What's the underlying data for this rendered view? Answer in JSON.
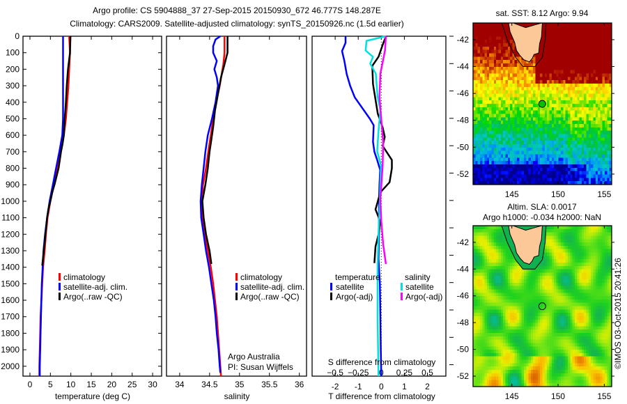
{
  "header": {
    "title_line1": "Argo profile: CS 5904888_37 27-Sep-2015 20150930_672 46.777S 148.287E",
    "title_line2": "Climatology: CARS2009. Satellite-adjusted climatology: synTS_20150926.nc (1.5d earlier)"
  },
  "credit": {
    "line1": "Argo Australia",
    "line2": "PI: Susan Wijffels",
    "stamp": "©IMOS 03-Oct-2015 20:41:26"
  },
  "chart_data": [
    {
      "type": "line",
      "id": "temperature",
      "xlabel": "temperature (deg C)",
      "ylabel": "",
      "xlim": [
        -1.7,
        32.2
      ],
      "ylim": [
        2060,
        0
      ],
      "xticks": [
        0,
        5,
        10,
        15,
        20,
        25,
        30
      ],
      "yticks": [
        0,
        100,
        200,
        300,
        400,
        500,
        600,
        700,
        800,
        900,
        1000,
        1100,
        1200,
        1300,
        1400,
        1500,
        1600,
        1700,
        1800,
        1900,
        2000
      ],
      "legend": [
        "climatology",
        "satellite-adj. clim.",
        "Argo(..raw -QC)"
      ],
      "legend_placement": "center-right",
      "series": [
        {
          "name": "climatology",
          "color": "#ff0000",
          "points": [
            [
              0,
              9.6
            ],
            [
              100,
              9.8
            ],
            [
              200,
              9.6
            ],
            [
              300,
              9.4
            ],
            [
              400,
              9.1
            ],
            [
              500,
              8.8
            ],
            [
              600,
              8.3
            ],
            [
              700,
              7.4
            ],
            [
              800,
              6.8
            ],
            [
              900,
              5.9
            ],
            [
              1000,
              5.0
            ],
            [
              1100,
              4.3
            ],
            [
              1200,
              3.9
            ],
            [
              1300,
              3.6
            ],
            [
              1400,
              3.2
            ],
            [
              1500,
              3.0
            ],
            [
              1600,
              2.8
            ],
            [
              1700,
              2.6
            ],
            [
              1800,
              2.5
            ],
            [
              1900,
              2.4
            ],
            [
              2000,
              2.3
            ],
            [
              2060,
              2.3
            ]
          ]
        },
        {
          "name": "satellite-adj. clim.",
          "color": "#0000ff",
          "points": [
            [
              0,
              8.1
            ],
            [
              500,
              8.1
            ],
            [
              600,
              7.9
            ],
            [
              700,
              7.2
            ],
            [
              800,
              6.4
            ],
            [
              900,
              5.6
            ],
            [
              1000,
              4.8
            ],
            [
              1100,
              4.2
            ],
            [
              1200,
              3.7
            ],
            [
              1300,
              3.3
            ],
            [
              1400,
              3.1
            ],
            [
              1500,
              2.9
            ],
            [
              1600,
              2.8
            ],
            [
              1700,
              2.7
            ],
            [
              1800,
              2.6
            ],
            [
              1900,
              2.5
            ],
            [
              2000,
              2.4
            ],
            [
              2060,
              2.4
            ]
          ]
        },
        {
          "name": "Argo(..raw -QC)",
          "color": "#000000",
          "points": [
            [
              0,
              9.9
            ],
            [
              100,
              9.8
            ],
            [
              200,
              9.3
            ],
            [
              300,
              9.0
            ],
            [
              400,
              8.8
            ],
            [
              500,
              8.5
            ],
            [
              600,
              8.3
            ],
            [
              650,
              8.0
            ],
            [
              700,
              7.6
            ],
            [
              800,
              7.0
            ],
            [
              900,
              6.0
            ],
            [
              950,
              5.4
            ],
            [
              1000,
              5.0
            ],
            [
              1050,
              4.5
            ],
            [
              1100,
              4.2
            ],
            [
              1200,
              3.8
            ],
            [
              1300,
              3.4
            ],
            [
              1390,
              3.0
            ]
          ]
        }
      ]
    },
    {
      "type": "line",
      "id": "salinity",
      "xlabel": "salinity",
      "xlim": [
        33.78,
        36.12
      ],
      "ylim": [
        2060,
        0
      ],
      "xticks": [
        34,
        34.5,
        35,
        35.5,
        36
      ],
      "legend": [
        "climatology",
        "satellite-adj. clim.",
        "Argo(..raw -QC)"
      ],
      "legend_placement": "center-right",
      "series": [
        {
          "name": "climatology",
          "color": "#ff0000",
          "points": [
            [
              0,
              34.75
            ],
            [
              100,
              34.75
            ],
            [
              170,
              34.73
            ],
            [
              300,
              34.67
            ],
            [
              380,
              34.62
            ],
            [
              500,
              34.56
            ],
            [
              600,
              34.52
            ],
            [
              670,
              34.49
            ],
            [
              800,
              34.44
            ],
            [
              900,
              34.39
            ],
            [
              1000,
              34.37
            ],
            [
              1100,
              34.38
            ],
            [
              1200,
              34.42
            ],
            [
              1300,
              34.47
            ],
            [
              1400,
              34.52
            ],
            [
              1500,
              34.56
            ],
            [
              1600,
              34.59
            ],
            [
              1700,
              34.62
            ],
            [
              1800,
              34.64
            ],
            [
              1900,
              34.66
            ],
            [
              2000,
              34.68
            ],
            [
              2060,
              34.69
            ]
          ]
        },
        {
          "name": "satellite-adj. clim.",
          "color": "#0000ff",
          "points": [
            [
              0,
              34.68
            ],
            [
              20,
              34.6
            ],
            [
              60,
              34.56
            ],
            [
              100,
              34.56
            ],
            [
              150,
              34.62
            ],
            [
              200,
              34.58
            ],
            [
              250,
              34.62
            ],
            [
              300,
              34.64
            ],
            [
              400,
              34.6
            ],
            [
              500,
              34.54
            ],
            [
              600,
              34.47
            ],
            [
              700,
              34.43
            ],
            [
              800,
              34.4
            ],
            [
              900,
              34.37
            ],
            [
              1000,
              34.35
            ],
            [
              1100,
              34.36
            ],
            [
              1200,
              34.4
            ],
            [
              1300,
              34.44
            ],
            [
              1400,
              34.49
            ],
            [
              1500,
              34.53
            ],
            [
              1600,
              34.57
            ],
            [
              1700,
              34.6
            ],
            [
              1800,
              34.62
            ],
            [
              1900,
              34.65
            ],
            [
              2000,
              34.67
            ],
            [
              2040,
              34.68
            ]
          ]
        },
        {
          "name": "Argo(..raw -QC)",
          "color": "#000000",
          "points": [
            [
              0,
              34.8
            ],
            [
              100,
              34.8
            ],
            [
              170,
              34.75
            ],
            [
              250,
              34.69
            ],
            [
              350,
              34.64
            ],
            [
              450,
              34.59
            ],
            [
              550,
              34.56
            ],
            [
              650,
              34.52
            ],
            [
              700,
              34.5
            ],
            [
              800,
              34.47
            ],
            [
              900,
              34.43
            ],
            [
              1000,
              34.38
            ],
            [
              1100,
              34.4
            ],
            [
              1200,
              34.44
            ],
            [
              1300,
              34.5
            ],
            [
              1380,
              34.53
            ]
          ]
        }
      ]
    },
    {
      "type": "line",
      "id": "difference",
      "xlabel": "T difference from climatology",
      "x2label": "S difference from climatology",
      "xlim": [
        -3,
        2.8
      ],
      "ylim": [
        2060,
        0
      ],
      "xticks": [
        -2,
        -1,
        0,
        1,
        2
      ],
      "x2ticks": [
        -0.5,
        -0.25,
        0,
        0.25,
        0.5
      ],
      "x2_scale": 0.25,
      "legend_headers": [
        "temperature",
        "salinity"
      ],
      "legend": [
        "satellite",
        "Argo(-adj)",
        "satellite",
        "Argo(-adj)"
      ],
      "legend_placement": "center",
      "series": [
        {
          "name": "temperature satellite",
          "axis": "T",
          "color": "#0000ff",
          "points": [
            [
              0,
              -1.55
            ],
            [
              40,
              -1.55
            ],
            [
              90,
              -1.7
            ],
            [
              150,
              -1.6
            ],
            [
              230,
              -1.5
            ],
            [
              300,
              -1.35
            ],
            [
              370,
              -1.15
            ],
            [
              440,
              -0.8
            ],
            [
              500,
              -0.5
            ],
            [
              540,
              -0.33
            ],
            [
              640,
              -0.36
            ],
            [
              700,
              -0.3
            ],
            [
              750,
              -0.18
            ],
            [
              810,
              -0.05
            ],
            [
              900,
              -0.08
            ],
            [
              1000,
              -0.1
            ],
            [
              1100,
              -0.1
            ],
            [
              1200,
              -0.1
            ],
            [
              1350,
              -0.12
            ],
            [
              1500,
              -0.06
            ],
            [
              1700,
              -0.04
            ],
            [
              1900,
              -0.02
            ],
            [
              2060,
              0
            ]
          ]
        },
        {
          "name": "temperature Argo(-adj)",
          "axis": "T",
          "color": "#000000",
          "points": [
            [
              0,
              0.21
            ],
            [
              40,
              0.09
            ],
            [
              125,
              -0.12
            ],
            [
              180,
              -0.39
            ],
            [
              290,
              -0.36
            ],
            [
              470,
              -0.15
            ],
            [
              553,
              0.06
            ],
            [
              610,
              0.15
            ],
            [
              665,
              0.06
            ],
            [
              750,
              0.46
            ],
            [
              800,
              0.46
            ],
            [
              885,
              0.36
            ],
            [
              940,
              0.0
            ],
            [
              975,
              -0.1
            ],
            [
              1050,
              -0.25
            ],
            [
              1120,
              -0.05
            ],
            [
              1190,
              -0.1
            ],
            [
              1275,
              -0.25
            ],
            [
              1375,
              -0.3
            ]
          ]
        },
        {
          "name": "salinity satellite",
          "axis": "S",
          "color": "#00e0e0",
          "points": [
            [
              0,
              0.05
            ],
            [
              28,
              -0.16
            ],
            [
              87,
              -0.17
            ],
            [
              125,
              -0.09
            ],
            [
              166,
              -0.12
            ],
            [
              227,
              -0.06
            ],
            [
              366,
              -0.04
            ],
            [
              450,
              -0.01
            ],
            [
              574,
              -0.03
            ],
            [
              698,
              -0.045
            ],
            [
              781,
              -0.003
            ],
            [
              990,
              -0.015
            ],
            [
              1200,
              -0.03
            ],
            [
              1400,
              -0.04
            ],
            [
              1700,
              -0.04
            ],
            [
              2060,
              -0.03
            ]
          ]
        },
        {
          "name": "salinity Argo(-adj)",
          "axis": "S",
          "color": "#ff00ff",
          "points": [
            [
              0,
              0.05
            ],
            [
              87,
              0.04
            ],
            [
              227,
              -0.01
            ],
            [
              366,
              -0.02
            ],
            [
              505,
              0.0
            ],
            [
              643,
              0.02
            ],
            [
              781,
              0.015
            ],
            [
              990,
              -0.01
            ],
            [
              1122,
              0.0
            ],
            [
              1261,
              0.02
            ],
            [
              1380,
              0.05
            ]
          ]
        }
      ]
    },
    {
      "type": "heatmap",
      "id": "sst-map",
      "title": "sat. SST: 8.12 Argo: 9.94",
      "xlim": [
        140.8,
        155.8
      ],
      "ylim": [
        -52.78,
        -40.76
      ],
      "xticks": [
        145,
        150,
        155
      ],
      "yticks": [
        -42,
        -44,
        -46,
        -48,
        -50,
        -52
      ],
      "argo_position": [
        148.287,
        -46.777
      ],
      "colors": {
        "land": "#fcc898",
        "marker": "#00c000"
      }
    },
    {
      "type": "heatmap",
      "id": "sla-map",
      "title": "Altim. SLA: 0.0017",
      "subtitle": "Argo h1000: -0.034 h2000: NaN",
      "xlim": [
        140.8,
        155.8
      ],
      "ylim": [
        -52.78,
        -40.76
      ],
      "xticks": [
        145,
        150,
        155
      ],
      "yticks": [
        -42,
        -44,
        -46,
        -48,
        -50,
        -52
      ],
      "argo_position": [
        148.287,
        -46.777
      ],
      "colors": {
        "land": "#fcc898",
        "shelf": "#10b050"
      }
    }
  ]
}
